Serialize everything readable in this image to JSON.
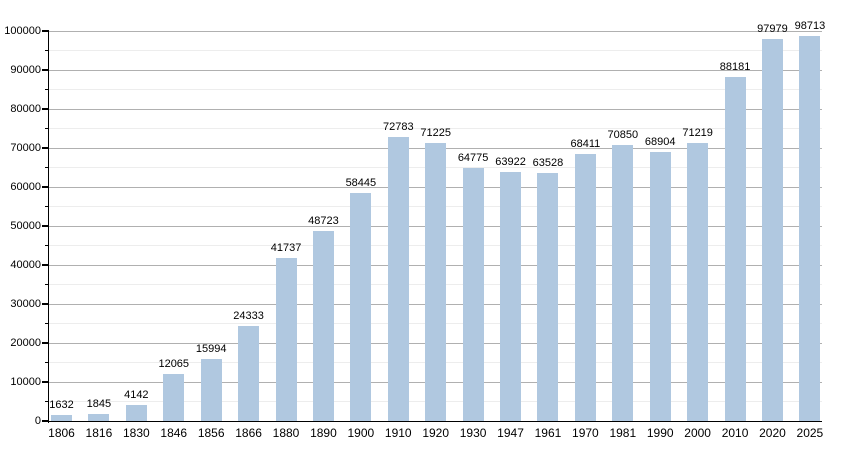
{
  "chart_data": {
    "type": "bar",
    "title": "",
    "subtitle": "",
    "xlabel": "",
    "ylabel": "",
    "categories": [
      "1806",
      "1816",
      "1830",
      "1846",
      "1856",
      "1866",
      "1880",
      "1890",
      "1900",
      "1910",
      "1920",
      "1930",
      "1947",
      "1961",
      "1970",
      "1981",
      "1990",
      "2000",
      "2010",
      "2020",
      "2025"
    ],
    "values": [
      1632,
      1845,
      4142,
      12065,
      15994,
      24333,
      41737,
      48723,
      58445,
      72783,
      71225,
      64775,
      63922,
      63528,
      68411,
      70850,
      68904,
      71219,
      88181,
      97979,
      98713
    ],
    "ylim": [
      0,
      100000
    ],
    "ytick_interval": 10000,
    "yminor_interval": 5000,
    "ytick_labels": [
      "0",
      "10000",
      "20000",
      "30000",
      "40000",
      "50000",
      "60000",
      "70000",
      "80000",
      "90000",
      "100000"
    ],
    "grid": true,
    "legend": null,
    "colors": {
      "bar": "#b0c8e0",
      "major_grid": "#b0b0b0",
      "minor_grid": "#ededed",
      "axis": "#000000",
      "text": "#000000",
      "background": "#ffffff"
    }
  }
}
